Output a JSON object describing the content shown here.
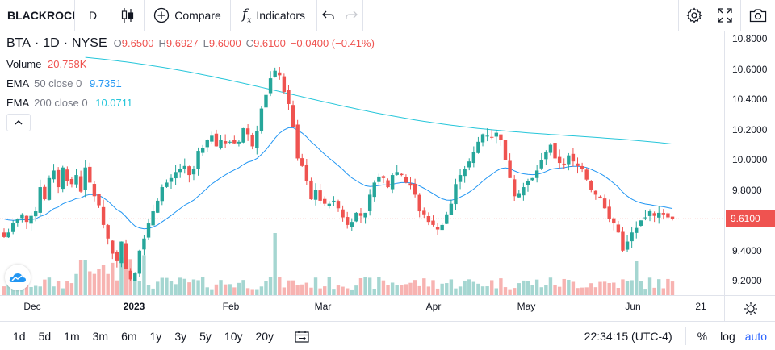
{
  "toolbar": {
    "symbol": "BLACKROCK",
    "interval": "D",
    "compare_label": "Compare",
    "indicators_label": "Indicators"
  },
  "legend": {
    "ticker": "BTA",
    "interval": "1D",
    "exchange": "NYSE",
    "o_label": "O",
    "o_value": "9.6500",
    "h_label": "H",
    "h_value": "9.6927",
    "l_label": "L",
    "l_value": "9.6000",
    "c_label": "C",
    "c_value": "9.6100",
    "change": "−0.0400 (−0.41%)",
    "volume_label": "Volume",
    "volume_value": "20.758K",
    "ema50_label": "EMA",
    "ema50_params": "50 close 0",
    "ema50_value": "9.7351",
    "ema200_label": "EMA",
    "ema200_params": "200 close 0",
    "ema200_value": "10.0711"
  },
  "colors": {
    "up": "#26a69a",
    "down": "#ef5350",
    "ema50": "#2196f3",
    "ema200": "#26c6da",
    "vol_up": "#a5d6d1",
    "vol_down": "#f7b3b1"
  },
  "price_axis": {
    "ticks": [
      "10.8000",
      "10.6000",
      "10.4000",
      "10.2000",
      "10.0000",
      "9.8000",
      "9.6000",
      "9.4000",
      "9.2000"
    ],
    "last_price": "9.6100"
  },
  "time_axis": {
    "labels": [
      {
        "text": "Dec",
        "bold": false
      },
      {
        "text": "2023",
        "bold": true
      },
      {
        "text": "Feb",
        "bold": false
      },
      {
        "text": "Mar",
        "bold": false
      },
      {
        "text": "Apr",
        "bold": false
      },
      {
        "text": "May",
        "bold": false
      },
      {
        "text": "Jun",
        "bold": false
      },
      {
        "text": "21",
        "bold": false
      }
    ]
  },
  "bottom": {
    "ranges": [
      "1d",
      "5d",
      "1m",
      "3m",
      "6m",
      "1y",
      "3y",
      "5y",
      "10y",
      "20y"
    ],
    "clock": "22:34:15 (UTC-4)",
    "percent_label": "%",
    "log_label": "log",
    "auto_label": "auto"
  },
  "chart_data": {
    "type": "candlestick",
    "x": [
      "Dec",
      "2023",
      "Feb",
      "Mar",
      "Apr",
      "May",
      "Jun"
    ],
    "ylim": [
      9.1,
      10.85
    ],
    "closes": [
      9.49,
      9.52,
      9.58,
      9.61,
      9.64,
      9.59,
      9.63,
      9.66,
      9.82,
      9.74,
      9.88,
      9.93,
      9.82,
      9.95,
      9.86,
      9.84,
      9.9,
      9.79,
      9.95,
      9.85,
      9.76,
      9.7,
      9.57,
      9.48,
      9.38,
      9.33,
      9.46,
      9.28,
      9.21,
      9.25,
      9.4,
      9.48,
      9.58,
      9.66,
      9.73,
      9.82,
      9.85,
      9.88,
      9.92,
      9.94,
      9.96,
      9.9,
      9.94,
      10.06,
      10.08,
      10.13,
      10.16,
      10.09,
      10.13,
      10.11,
      10.12,
      10.11,
      10.12,
      10.21,
      10.17,
      10.09,
      10.19,
      10.34,
      10.43,
      10.54,
      10.59,
      10.56,
      10.45,
      10.37,
      10.22,
      10.01,
      9.96,
      9.86,
      9.74,
      9.8,
      9.73,
      9.71,
      9.71,
      9.73,
      9.68,
      9.62,
      9.57,
      9.59,
      9.65,
      9.63,
      9.65,
      9.77,
      9.85,
      9.89,
      9.88,
      9.82,
      9.9,
      9.92,
      9.9,
      9.85,
      9.83,
      9.77,
      9.66,
      9.64,
      9.59,
      9.57,
      9.54,
      9.57,
      9.64,
      9.71,
      9.84,
      9.9,
      9.94,
      9.99,
      10.05,
      10.12,
      10.17,
      10.16,
      10.15,
      10.18,
      10.13,
      10.0,
      9.88,
      9.76,
      9.78,
      9.82,
      9.86,
      9.88,
      9.93,
      10.0,
      10.05,
      10.1,
      10.01,
      9.98,
      9.97,
      10.03,
      9.99,
      9.96,
      9.94,
      9.87,
      9.8,
      9.77,
      9.75,
      9.68,
      9.61,
      9.58,
      9.52,
      9.4,
      9.46,
      9.52,
      9.55,
      9.6,
      9.62,
      9.66,
      9.63,
      9.65,
      9.64,
      9.62,
      9.61
    ],
    "volume_direction": "alternating up/down bars matching candle colors",
    "series": [
      {
        "name": "EMA 50 close 0",
        "last_value": 9.7351
      },
      {
        "name": "EMA 200 close 0",
        "last_value": 10.0711
      }
    ]
  }
}
